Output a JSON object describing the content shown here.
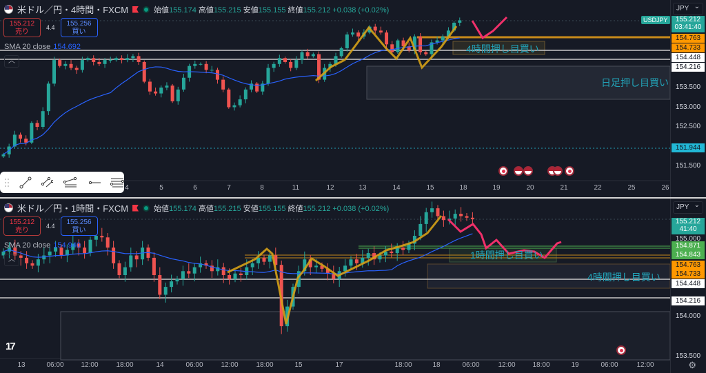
{
  "colors": {
    "up": "#26a69a",
    "down": "#ef5350",
    "sma": "#2962ff",
    "bg": "#161a25",
    "accent_cyan": "#22a3b8",
    "orange": "#ff9800",
    "green_level": "#4caf50",
    "drawing_yellow": "#d4a017",
    "drawing_pink": "#f0306a"
  },
  "top": {
    "title": "米ドル／円・4時間・FXCM",
    "ohlc": {
      "open_label": "始値",
      "open": "155.174",
      "high_label": "高値",
      "high": "155.215",
      "low_label": "安値",
      "low": "155.155",
      "close_label": "終値",
      "close": "155.212",
      "change": "+0.038 (+0.02%)"
    },
    "sell": {
      "price": "155.212",
      "label": "売り"
    },
    "spread": "4.4",
    "buy": {
      "price": "155.256",
      "label": "買い"
    },
    "sma": {
      "label": "SMA 20 close",
      "value": "154.692"
    },
    "collapse_icon": "chevron-up-icon",
    "currency": "JPY",
    "symbol_tag": "USDJPY",
    "price_labels": [
      {
        "text": "155.212",
        "sub": "03:41:40",
        "kind": "last"
      },
      {
        "text": "154.763",
        "kind": "orange"
      },
      {
        "text": "154.733",
        "kind": "orange"
      },
      {
        "text": "154.448",
        "kind": "white"
      },
      {
        "text": "154.216",
        "kind": "white"
      },
      {
        "text": "151.944",
        "kind": "cyan"
      }
    ],
    "price_ticks": [
      "153.500",
      "153.000",
      "152.500",
      "151.500"
    ],
    "time_ticks": [
      "4",
      "5",
      "6",
      "7",
      "8",
      "11",
      "12",
      "13",
      "14",
      "15",
      "18",
      "19",
      "20",
      "21",
      "22",
      "25",
      "26"
    ],
    "annotations": [
      "4時間押し目買い",
      "日足押し目買い"
    ],
    "toolbar_icons": [
      "drag-handle-icon",
      "trend-line-icon",
      "parallel-channel-icon",
      "fib-retracement-icon",
      "horizontal-ray-icon",
      "horizontal-lines-icon"
    ],
    "events": [
      "jp",
      "us",
      "us",
      "us",
      "us",
      "jp"
    ],
    "closes": [
      151.8,
      152.0,
      152.3,
      152.2,
      152.1,
      152.6,
      152.5,
      152.9,
      153.6,
      154.2,
      154.05,
      154.1,
      154.0,
      153.95,
      154.2,
      154.25,
      154.15,
      154.1,
      154.2,
      154.2,
      154.25,
      154.2,
      154.25,
      154.3,
      154.15,
      153.65,
      153.4,
      153.35,
      153.5,
      153.55,
      153.15,
      153.45,
      153.75,
      154.05,
      154.1,
      154.1,
      153.95,
      153.95,
      153.7,
      153.45,
      153.0,
      153.05,
      153.2,
      153.45,
      153.6,
      153.4,
      153.6,
      154.0,
      154.1,
      154.25,
      154.15,
      154.0,
      154.2,
      154.4,
      154.3,
      154.35,
      153.7,
      154.0,
      154.1,
      154.3,
      154.5,
      154.85,
      154.9,
      154.8,
      154.9,
      155.05,
      154.95,
      154.9,
      154.6,
      154.4,
      154.7,
      154.55,
      154.45,
      154.8,
      154.4,
      154.35,
      154.65,
      154.7,
      154.8,
      154.95,
      155.15,
      155.212
    ]
  },
  "bottom": {
    "title": "米ドル／円・1時間・FXCM",
    "ohlc": {
      "open_label": "始値",
      "open": "155.174",
      "high_label": "高値",
      "high": "155.215",
      "low_label": "安値",
      "low": "155.155",
      "close_label": "終値",
      "close": "155.212",
      "change": "+0.038 (+0.02%)"
    },
    "sell": {
      "price": "155.212",
      "label": "売り"
    },
    "spread": "4.4",
    "buy": {
      "price": "155.256",
      "label": "買い"
    },
    "sma": {
      "label": "SMA 20 close",
      "value": "154.940"
    },
    "currency": "JPY",
    "price_labels": [
      {
        "text": "155.212",
        "sub": "41:40",
        "kind": "last"
      },
      {
        "text": "154.871",
        "kind": "green"
      },
      {
        "text": "154.843",
        "kind": "green"
      },
      {
        "text": "154.763",
        "kind": "orange"
      },
      {
        "text": "154.733",
        "kind": "orange"
      },
      {
        "text": "154.448",
        "kind": "white"
      },
      {
        "text": "154.216",
        "kind": "white"
      }
    ],
    "price_ticks": [
      "155.000",
      "154.000",
      "153.500"
    ],
    "time_ticks": [
      "13",
      "06:00",
      "12:00",
      "18:00",
      "14",
      "06:00",
      "12:00",
      "18:00",
      "15",
      "17",
      "18:00",
      "18",
      "06:00",
      "12:00",
      "18:00",
      "19",
      "06:00",
      "12:00"
    ],
    "annotations": [
      "1時間押し目買い",
      "4時間押し目買い"
    ],
    "closes": [
      154.8,
      154.85,
      154.75,
      154.72,
      154.65,
      154.62,
      154.7,
      154.75,
      154.8,
      154.85,
      154.75,
      154.82,
      154.9,
      154.85,
      154.78,
      154.95,
      155.0,
      154.98,
      154.85,
      154.65,
      154.5,
      154.6,
      154.75,
      154.7,
      154.85,
      154.72,
      154.5,
      154.25,
      154.35,
      154.42,
      154.45,
      154.55,
      154.52,
      154.6,
      154.65,
      154.62,
      154.55,
      154.6,
      154.5,
      154.45,
      154.52,
      154.5,
      154.6,
      154.65,
      154.72,
      154.67,
      154.75,
      154.63,
      153.85,
      154.1,
      154.35,
      154.55,
      154.7,
      154.6,
      154.62,
      154.58,
      154.52,
      154.45,
      154.55,
      154.62,
      154.7,
      154.65,
      154.72,
      154.78,
      154.7,
      154.75,
      154.8,
      154.78,
      154.85,
      154.82,
      154.9,
      155.0,
      155.15,
      155.3,
      155.35,
      155.25,
      155.2,
      155.22,
      155.28,
      155.25,
      155.23,
      155.212
    ]
  }
}
